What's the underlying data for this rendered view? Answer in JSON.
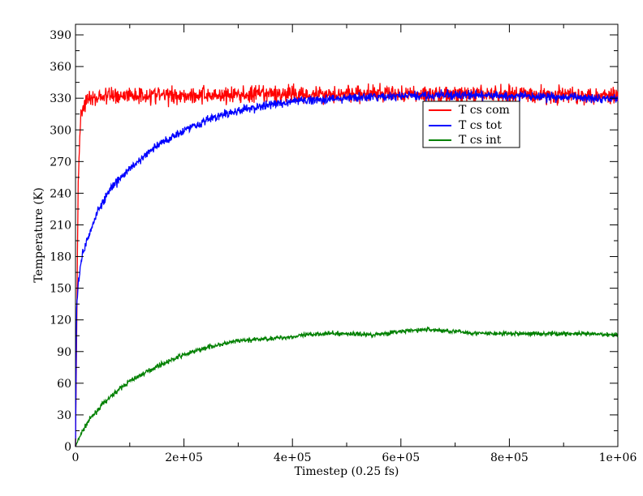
{
  "chart_data": {
    "type": "line",
    "title": "",
    "xlabel": "Timestep (0.25 fs)",
    "ylabel": "Temperature (K)",
    "xlim": [
      0,
      1000000
    ],
    "ylim": [
      0,
      400
    ],
    "x_ticks": [
      0,
      200000,
      400000,
      600000,
      800000,
      1000000
    ],
    "x_tick_labels": [
      "0",
      "2e+05",
      "4e+05",
      "6e+05",
      "8e+05",
      "1e+06"
    ],
    "y_ticks": [
      0,
      30,
      60,
      90,
      120,
      150,
      180,
      210,
      240,
      270,
      300,
      330,
      360,
      390
    ],
    "y_tick_labels": [
      "0",
      "30",
      "60",
      "90",
      "120",
      "150",
      "180",
      "210",
      "240",
      "270",
      "300",
      "330",
      "360",
      "390"
    ],
    "grid": false,
    "legend_position": "upper-right",
    "series": [
      {
        "name": "T cs com",
        "color": "#ff0000",
        "x": [
          0,
          5000,
          10000,
          20000,
          50000,
          100000,
          200000,
          300000,
          400000,
          500000,
          600000,
          700000,
          800000,
          900000,
          1000000
        ],
        "values": [
          0,
          250,
          318,
          328,
          332,
          333,
          333,
          333,
          334,
          334,
          334,
          333,
          334,
          333,
          333
        ],
        "noise": 8
      },
      {
        "name": "T cs tot",
        "color": "#0000ff",
        "x": [
          0,
          2000,
          5000,
          10000,
          20000,
          40000,
          60000,
          80000,
          100000,
          150000,
          200000,
          250000,
          300000,
          350000,
          400000,
          450000,
          500000,
          600000,
          700000,
          800000,
          900000,
          1000000
        ],
        "values": [
          0,
          130,
          155,
          175,
          195,
          222,
          240,
          253,
          263,
          285,
          300,
          311,
          318,
          323,
          327,
          329,
          330,
          332,
          333,
          332,
          331,
          330
        ],
        "noise": 4
      },
      {
        "name": "T cs int",
        "color": "#008000",
        "x": [
          0,
          10000,
          25000,
          50000,
          75000,
          100000,
          150000,
          200000,
          250000,
          300000,
          350000,
          400000,
          450000,
          500000,
          550000,
          600000,
          650000,
          700000,
          750000,
          800000,
          900000,
          1000000
        ],
        "values": [
          0,
          12,
          25,
          40,
          52,
          62,
          76,
          87,
          95,
          100,
          102,
          104,
          107,
          107,
          106,
          109,
          111,
          109,
          107,
          107,
          107,
          106
        ],
        "noise": 2
      }
    ]
  }
}
